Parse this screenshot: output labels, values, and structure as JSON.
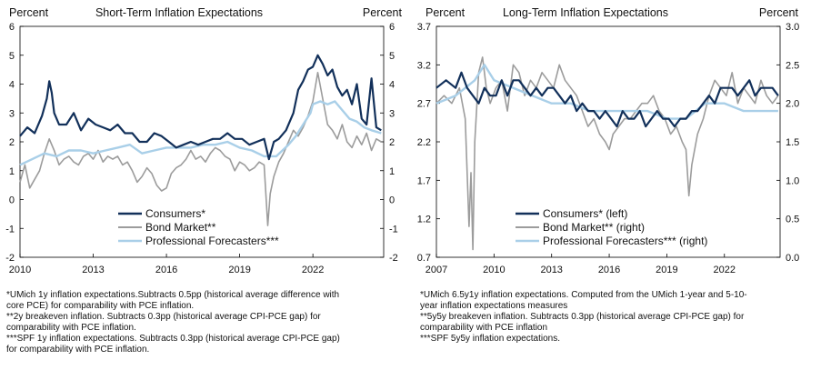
{
  "chart_data": [
    {
      "type": "line",
      "title": "Short-Term Inflation Expectations",
      "ylabel_left": "Percent",
      "ylabel_right": "Percent",
      "ylim": [
        -2,
        6
      ],
      "y_ticks": [
        "-2",
        "-1",
        "0",
        "1",
        "2",
        "3",
        "4",
        "5",
        "6"
      ],
      "x_range": [
        2010,
        2024.9
      ],
      "x_ticks": [
        "2010",
        "2013",
        "2016",
        "2019",
        "2022"
      ],
      "legend_position": "lower-center",
      "series": [
        {
          "name": "Consumers*",
          "color": "#12305a",
          "x": [
            2010,
            2010.3,
            2010.6,
            2010.9,
            2011.1,
            2011.2,
            2011.3,
            2011.4,
            2011.6,
            2011.9,
            2012.2,
            2012.5,
            2012.8,
            2013.1,
            2013.4,
            2013.7,
            2014,
            2014.3,
            2014.6,
            2014.9,
            2015.2,
            2015.5,
            2015.8,
            2016.1,
            2016.4,
            2016.7,
            2017,
            2017.3,
            2017.6,
            2017.9,
            2018.2,
            2018.5,
            2018.8,
            2019.1,
            2019.4,
            2019.7,
            2020,
            2020.2,
            2020.4,
            2020.6,
            2020.9,
            2021.2,
            2021.4,
            2021.6,
            2021.8,
            2022,
            2022.2,
            2022.4,
            2022.6,
            2022.8,
            2023,
            2023.2,
            2023.4,
            2023.6,
            2023.8,
            2024,
            2024.2,
            2024.4,
            2024.6,
            2024.8
          ],
          "values": [
            2.2,
            2.5,
            2.3,
            2.9,
            3.5,
            4.1,
            3.7,
            3.0,
            2.6,
            2.6,
            3.0,
            2.4,
            2.8,
            2.6,
            2.5,
            2.4,
            2.6,
            2.3,
            2.3,
            2.0,
            2.0,
            2.3,
            2.2,
            2.0,
            1.8,
            1.9,
            2.0,
            1.9,
            2.0,
            2.1,
            2.1,
            2.3,
            2.1,
            2.1,
            1.9,
            2.0,
            2.1,
            1.4,
            2.0,
            2.1,
            2.4,
            3.0,
            3.8,
            4.1,
            4.5,
            4.6,
            5.0,
            4.7,
            4.3,
            4.5,
            3.9,
            3.6,
            3.8,
            3.3,
            4.0,
            2.8,
            2.6,
            4.2,
            2.5,
            2.4
          ]
        },
        {
          "name": "Bond Market**",
          "color": "#9c9c9c",
          "x": [
            2010,
            2010.2,
            2010.4,
            2010.6,
            2010.8,
            2011,
            2011.2,
            2011.4,
            2011.6,
            2011.8,
            2012,
            2012.2,
            2012.4,
            2012.6,
            2012.8,
            2013,
            2013.2,
            2013.4,
            2013.6,
            2013.8,
            2014,
            2014.2,
            2014.4,
            2014.6,
            2014.8,
            2015,
            2015.2,
            2015.4,
            2015.6,
            2015.8,
            2016,
            2016.2,
            2016.4,
            2016.6,
            2016.8,
            2017,
            2017.2,
            2017.4,
            2017.6,
            2017.8,
            2018,
            2018.2,
            2018.4,
            2018.6,
            2018.8,
            2019,
            2019.2,
            2019.4,
            2019.6,
            2019.8,
            2020,
            2020.15,
            2020.25,
            2020.4,
            2020.6,
            2020.8,
            2021,
            2021.2,
            2021.4,
            2021.6,
            2021.8,
            2022,
            2022.2,
            2022.4,
            2022.6,
            2022.8,
            2023,
            2023.2,
            2023.4,
            2023.6,
            2023.8,
            2024,
            2024.2,
            2024.4,
            2024.6,
            2024.8
          ],
          "values": [
            0.6,
            1.2,
            0.4,
            0.7,
            1.0,
            1.6,
            2.1,
            1.7,
            1.2,
            1.4,
            1.5,
            1.3,
            1.2,
            1.5,
            1.6,
            1.4,
            1.7,
            1.3,
            1.5,
            1.4,
            1.5,
            1.2,
            1.3,
            1.0,
            0.6,
            0.8,
            1.1,
            0.9,
            0.5,
            0.3,
            0.4,
            0.9,
            1.1,
            1.2,
            1.4,
            1.7,
            1.4,
            1.5,
            1.3,
            1.6,
            1.8,
            1.7,
            1.5,
            1.4,
            1.0,
            1.3,
            1.2,
            1.0,
            1.1,
            1.3,
            1.2,
            -0.9,
            0.2,
            0.8,
            1.3,
            1.6,
            2.0,
            2.4,
            2.2,
            2.5,
            2.9,
            3.4,
            4.4,
            3.5,
            2.6,
            2.4,
            2.1,
            2.6,
            2.0,
            1.8,
            2.2,
            1.9,
            2.3,
            1.7,
            2.1,
            2.0
          ]
        },
        {
          "name": "Professional Forecasters***",
          "color": "#a9cfe8",
          "x": [
            2010,
            2010.5,
            2011,
            2011.5,
            2012,
            2012.5,
            2013,
            2013.5,
            2014,
            2014.5,
            2015,
            2015.5,
            2016,
            2016.5,
            2017,
            2017.5,
            2018,
            2018.5,
            2019,
            2019.5,
            2020,
            2020.5,
            2021,
            2021.3,
            2021.6,
            2021.9,
            2022,
            2022.3,
            2022.6,
            2022.9,
            2023.2,
            2023.5,
            2023.8,
            2024.1,
            2024.4,
            2024.8
          ],
          "values": [
            1.2,
            1.4,
            1.6,
            1.5,
            1.7,
            1.7,
            1.6,
            1.7,
            1.8,
            1.9,
            1.6,
            1.7,
            1.8,
            1.8,
            1.8,
            1.9,
            1.9,
            2.0,
            1.8,
            1.7,
            1.5,
            1.5,
            1.9,
            2.2,
            2.6,
            3.0,
            3.3,
            3.4,
            3.3,
            3.4,
            3.1,
            2.8,
            2.7,
            2.5,
            2.4,
            2.3
          ]
        }
      ]
    },
    {
      "type": "line",
      "title": "Long-Term Inflation Expectations",
      "ylabel_left": "Percent",
      "ylabel_right": "Percent",
      "ylim_left": [
        0.7,
        3.7
      ],
      "ylim_right": [
        0.0,
        3.0
      ],
      "y_ticks_left": [
        "0.7",
        "1.2",
        "1.7",
        "2.2",
        "2.7",
        "3.2",
        "3.7"
      ],
      "y_ticks_right": [
        "0.0",
        "0.5",
        "1.0",
        "1.5",
        "2.0",
        "2.5",
        "3.0"
      ],
      "x_range": [
        2007,
        2024.9
      ],
      "x_ticks": [
        "2007",
        "2010",
        "2013",
        "2016",
        "2019",
        "2022"
      ],
      "legend_position": "lower-center",
      "series": [
        {
          "name": "Consumers* (left)",
          "color": "#12305a",
          "axis": "left",
          "x": [
            2007,
            2007.5,
            2008,
            2008.3,
            2008.6,
            2008.9,
            2009.2,
            2009.5,
            2009.8,
            2010.1,
            2010.4,
            2010.7,
            2011,
            2011.3,
            2011.6,
            2011.9,
            2012.2,
            2012.5,
            2012.8,
            2013.1,
            2013.4,
            2013.7,
            2014,
            2014.3,
            2014.6,
            2014.9,
            2015.2,
            2015.5,
            2015.8,
            2016.1,
            2016.4,
            2016.7,
            2017,
            2017.3,
            2017.6,
            2017.9,
            2018.2,
            2018.5,
            2018.8,
            2019.1,
            2019.4,
            2019.7,
            2020,
            2020.3,
            2020.6,
            2020.9,
            2021.2,
            2021.5,
            2021.8,
            2022.1,
            2022.4,
            2022.7,
            2023,
            2023.3,
            2023.6,
            2023.9,
            2024.2,
            2024.5,
            2024.8
          ],
          "values": [
            2.9,
            3.0,
            2.9,
            3.1,
            2.9,
            2.8,
            2.7,
            2.9,
            2.8,
            2.8,
            3.0,
            2.8,
            3.0,
            3.0,
            2.9,
            2.8,
            2.9,
            2.8,
            2.9,
            2.9,
            2.8,
            2.7,
            2.8,
            2.6,
            2.7,
            2.6,
            2.6,
            2.5,
            2.6,
            2.5,
            2.4,
            2.6,
            2.5,
            2.5,
            2.6,
            2.4,
            2.5,
            2.6,
            2.5,
            2.5,
            2.4,
            2.5,
            2.5,
            2.6,
            2.6,
            2.7,
            2.8,
            2.7,
            2.9,
            2.9,
            2.9,
            2.8,
            2.9,
            3.0,
            2.8,
            2.9,
            2.9,
            2.9,
            2.8
          ]
        },
        {
          "name": "Bond Market** (right)",
          "color": "#9c9c9c",
          "axis": "right",
          "x": [
            2007,
            2007.4,
            2007.8,
            2008.2,
            2008.5,
            2008.7,
            2008.8,
            2008.9,
            2009,
            2009.2,
            2009.4,
            2009.6,
            2009.8,
            2010.1,
            2010.4,
            2010.7,
            2011,
            2011.3,
            2011.6,
            2011.9,
            2012.2,
            2012.5,
            2012.8,
            2013.1,
            2013.4,
            2013.7,
            2014,
            2014.3,
            2014.6,
            2014.9,
            2015.2,
            2015.5,
            2015.8,
            2016,
            2016.2,
            2016.5,
            2016.8,
            2017.1,
            2017.4,
            2017.7,
            2018,
            2018.3,
            2018.6,
            2018.9,
            2019.2,
            2019.5,
            2019.8,
            2020,
            2020.15,
            2020.3,
            2020.6,
            2020.9,
            2021.2,
            2021.5,
            2021.8,
            2022.1,
            2022.4,
            2022.7,
            2023,
            2023.3,
            2023.6,
            2023.9,
            2024.2,
            2024.5,
            2024.8
          ],
          "values": [
            2.0,
            2.1,
            2.0,
            2.2,
            1.8,
            0.4,
            1.1,
            0.1,
            1.5,
            2.4,
            2.6,
            2.2,
            2.0,
            2.2,
            2.3,
            1.9,
            2.5,
            2.4,
            2.1,
            2.3,
            2.2,
            2.4,
            2.3,
            2.2,
            2.5,
            2.3,
            2.2,
            2.1,
            1.9,
            1.7,
            1.8,
            1.6,
            1.5,
            1.4,
            1.6,
            1.7,
            1.8,
            1.8,
            1.9,
            2.0,
            2.0,
            2.1,
            1.9,
            1.8,
            1.6,
            1.7,
            1.5,
            1.4,
            0.8,
            1.2,
            1.6,
            1.8,
            2.1,
            2.3,
            2.2,
            2.1,
            2.4,
            2.0,
            2.2,
            2.1,
            2.0,
            2.3,
            2.1,
            2.0,
            2.1
          ]
        },
        {
          "name": "Professional Forecasters*** (right)",
          "color": "#a9cfe8",
          "axis": "right",
          "x": [
            2007,
            2008,
            2009,
            2009.5,
            2010,
            2011,
            2012,
            2013,
            2014,
            2015,
            2016,
            2017,
            2018,
            2019,
            2020,
            2021,
            2022,
            2023,
            2024,
            2024.8
          ],
          "values": [
            2.0,
            2.1,
            2.3,
            2.5,
            2.3,
            2.2,
            2.1,
            2.0,
            2.0,
            1.9,
            1.9,
            1.9,
            1.9,
            1.8,
            1.8,
            2.0,
            2.0,
            1.9,
            1.9,
            1.9
          ]
        }
      ]
    }
  ],
  "notes_left": [
    "*UMich  1y inflation expectations.Subtracts  0.5pp (historical average difference with",
    "core PCE)  for comparability  with PCE  inflation.",
    "**2y breakeven inflation. Subtracts 0.3pp (historical average CPI-PCE  gap) for",
    "comparability  with PCE   inflation.",
    "***SPF  1y inflation expectations. Subtracts 0.3pp (historical average CPI-PCE  gap)",
    "for comparability  with PCE  inflation."
  ],
  "notes_right": [
    "*UMich  6.5y1y inflation expectations.  Computed   from the UMich  1-year and 5-10-",
    "year inflation expectations measures",
    "**5y5y breakeven inflation. Subtracts 0.3pp (historical average CPI-PCE   gap) for",
    "comparability  with PCE   inflation",
    "***SPF  5y5y inflation expectations."
  ]
}
